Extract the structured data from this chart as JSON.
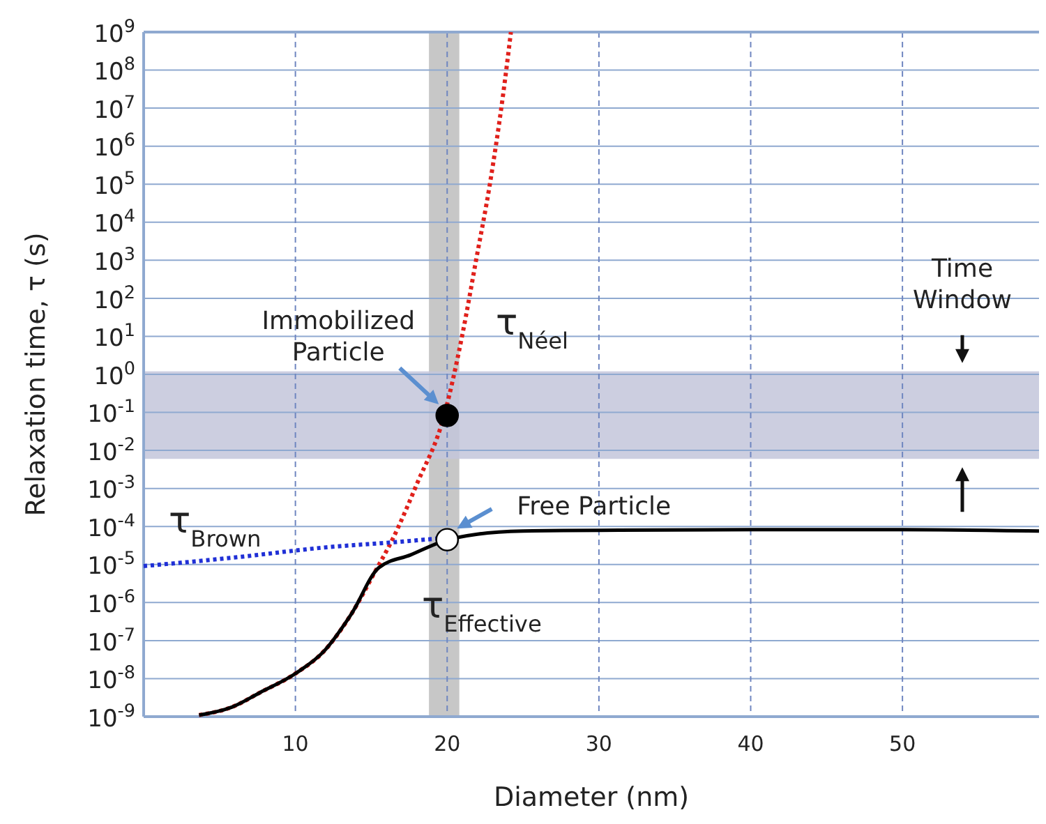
{
  "chart_data": {
    "type": "line",
    "xlabel": "Diameter (nm)",
    "ylabel": "Relaxation time, τ (s)",
    "xlim": [
      0,
      59
    ],
    "xticks": [
      10,
      20,
      30,
      40,
      50
    ],
    "log": "y",
    "ylim": [
      1e-09,
      1000000000.0
    ],
    "yticks": [
      {
        "value": 1e-09,
        "label": "10$^{-9}$"
      },
      {
        "value": 1e-08,
        "label": "10$^{-8}$"
      },
      {
        "value": 1e-07,
        "label": "10$^{-7}$"
      },
      {
        "value": 1e-06,
        "label": "10$^{-6}$"
      },
      {
        "value": 1e-05,
        "label": "10$^{-5}$"
      },
      {
        "value": 0.0001,
        "label": "10$^{-4}$"
      },
      {
        "value": 0.001,
        "label": "10$^{-3}$"
      },
      {
        "value": 0.01,
        "label": "10$^{-2}$"
      },
      {
        "value": 0.1,
        "label": "10$^{-1}$"
      },
      {
        "value": 1,
        "label": "10$^{0}$"
      },
      {
        "value": 10,
        "label": "10$^{1}$"
      },
      {
        "value": 100,
        "label": "10$^{2}$"
      },
      {
        "value": 1000,
        "label": "10$^{3}$"
      },
      {
        "value": 10000.0,
        "label": "10$^{4}$"
      },
      {
        "value": 100000.0,
        "label": "10$^{5}$"
      },
      {
        "value": 1000000.0,
        "label": "10$^{6}$"
      },
      {
        "value": 10000000.0,
        "label": "10$^{7}$"
      },
      {
        "value": 100000000.0,
        "label": "10$^{8}$"
      },
      {
        "value": 1000000000.0,
        "label": "10$^{9}$"
      }
    ],
    "grid": true,
    "bands": [
      {
        "axis": "x",
        "from": 18.8,
        "to": 20.8,
        "color": "#bdbdbd"
      },
      {
        "axis": "y",
        "from": 0.006,
        "to": 1.2,
        "label": "Time Window",
        "color": "#c3c6db"
      }
    ],
    "series": [
      {
        "name": "τ$_{Néel}$",
        "type": "line",
        "color": "#e0201b",
        "line_style": "dotted",
        "x": [
          3.65,
          5.84,
          7.67,
          10.05,
          11.87,
          13.7,
          15.25,
          16.4,
          18,
          19.8,
          21,
          21.9,
          22.8,
          23.7,
          24.2
        ],
        "values": [
          1.1e-09,
          1.8e-09,
          4.3e-09,
          1.4e-08,
          5.2e-08,
          5.1e-07,
          6.5e-06,
          4.6e-05,
          0.0013,
          0.083,
          11,
          980,
          93000.0,
          25000000.0,
          1000000000.0
        ]
      },
      {
        "name": "τ$_{Brown}$",
        "type": "line",
        "color": "#1f2fd6",
        "line_style": "dotted",
        "x": [
          0,
          5.8,
          11.9,
          17,
          19.8
        ],
        "values": [
          9.1e-06,
          1.5e-05,
          2.8e-05,
          4e-05,
          5e-05
        ]
      },
      {
        "name": "τ$_{Effective}$",
        "type": "line",
        "color": "#000000",
        "line_style": "solid",
        "x": [
          3.65,
          5.84,
          7.67,
          10.05,
          11.87,
          13.7,
          15.5,
          17.6,
          19.8,
          22,
          25,
          30,
          40,
          50,
          59
        ],
        "values": [
          1.1e-09,
          1.8e-09,
          4.3e-09,
          1.4e-08,
          5.2e-08,
          5.1e-07,
          8.3e-06,
          1.8e-05,
          4.2e-05,
          6.3e-05,
          7.6e-05,
          7.9e-05,
          8.3e-05,
          8.3e-05,
          7.6e-05
        ]
      },
      {
        "type": "scatter",
        "marker": "circle",
        "color": "#000000",
        "x": [
          20
        ],
        "values": [
          0.083
        ]
      },
      {
        "type": "scatter",
        "marker": "circle",
        "color": "#ffffff",
        "x": [
          20
        ],
        "values": [
          4.5e-05
        ]
      }
    ],
    "annotations": [
      {
        "text": "Immobilized Particle",
        "x": 20,
        "y": 0.083
      },
      {
        "text": "Free Particle",
        "x": 20,
        "y": 4.5e-05
      }
    ]
  }
}
